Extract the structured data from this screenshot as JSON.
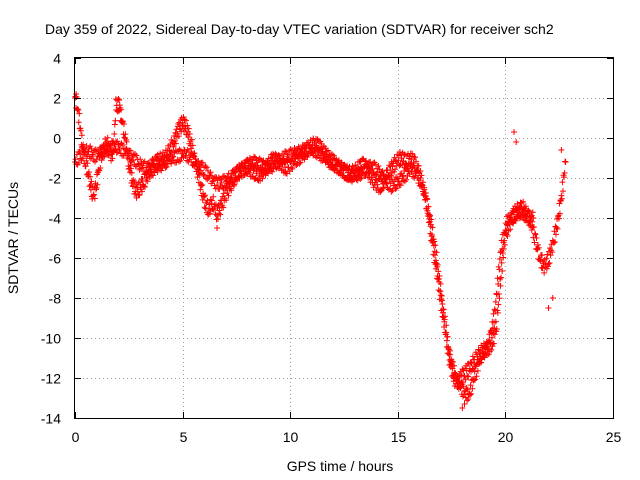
{
  "chart_data": {
    "type": "scatter",
    "title": "Day 359 of 2022, Sidereal Day-to-day VTEC variation (SDTVAR) for receiver sch2",
    "xlabel": "GPS time / hours",
    "ylabel": "SDTVAR / TECUs",
    "xlim": [
      0,
      25
    ],
    "ylim": [
      -14,
      4
    ],
    "xticks": [
      "0",
      "5",
      "10",
      "15",
      "20",
      "25"
    ],
    "yticks": [
      "4",
      "2",
      "0",
      "-2",
      "-4",
      "-6",
      "-8",
      "-10",
      "-12",
      "-14"
    ],
    "grid": true,
    "marker": "+",
    "series": [
      {
        "name": "sch2",
        "color": "#ff0000",
        "x": [
          0.0,
          0.1,
          0.2,
          0.3,
          0.4,
          0.5,
          0.6,
          0.7,
          0.8,
          0.9,
          1.0,
          1.1,
          1.2,
          1.3,
          1.4,
          1.5,
          1.6,
          1.7,
          1.8,
          1.9,
          2.0,
          2.1,
          2.2,
          2.3,
          2.4,
          2.5,
          2.6,
          2.7,
          2.8,
          2.9,
          3.0,
          3.2,
          3.4,
          3.6,
          3.8,
          4.0,
          4.2,
          4.4,
          4.6,
          4.8,
          5.0,
          5.2,
          5.4,
          5.6,
          5.8,
          6.0,
          6.2,
          6.4,
          6.6,
          6.8,
          7.0,
          7.2,
          7.4,
          7.6,
          7.8,
          8.0,
          8.2,
          8.4,
          8.6,
          8.8,
          9.0,
          9.2,
          9.4,
          9.6,
          9.8,
          10.0,
          10.2,
          10.4,
          10.6,
          10.8,
          11.0,
          11.2,
          11.4,
          11.6,
          11.8,
          12.0,
          12.2,
          12.4,
          12.6,
          12.8,
          13.0,
          13.2,
          13.4,
          13.6,
          13.8,
          14.0,
          14.2,
          14.4,
          14.6,
          14.8,
          15.0,
          15.2,
          15.4,
          15.6,
          15.8,
          16.0,
          16.2,
          16.4,
          16.6,
          16.8,
          17.0,
          17.2,
          17.4,
          17.6,
          17.8,
          18.0,
          18.2,
          18.4,
          18.6,
          18.8,
          19.0,
          19.2,
          19.4,
          19.6,
          19.8,
          20.0,
          20.2,
          20.4,
          20.6,
          20.8,
          21.0,
          21.2,
          21.4,
          21.6,
          21.8,
          22.0,
          22.2,
          22.4,
          22.6,
          22.8
        ],
        "y": [
          2.0,
          1.6,
          0.9,
          0.0,
          -0.8,
          -1.3,
          -1.7,
          -2.2,
          -2.7,
          -2.8,
          -2.3,
          -1.6,
          -1.0,
          -0.6,
          -0.4,
          -0.3,
          -0.5,
          -0.9,
          -0.4,
          1.6,
          1.7,
          1.3,
          0.8,
          0.2,
          -0.5,
          -1.2,
          -1.8,
          -2.3,
          -2.6,
          -2.7,
          -2.5,
          -2.2,
          -1.8,
          -1.4,
          -1.2,
          -1.1,
          -1.0,
          -0.6,
          -0.2,
          0.4,
          0.8,
          0.5,
          -0.3,
          -1.2,
          -2.2,
          -3.1,
          -3.6,
          -3.2,
          -3.8,
          -3.4,
          -2.8,
          -2.4,
          -2.0,
          -1.7,
          -1.6,
          -1.5,
          -1.6,
          -1.8,
          -1.8,
          -1.6,
          -1.3,
          -1.1,
          -1.1,
          -1.3,
          -1.5,
          -1.3,
          -1.1,
          -1.0,
          -0.8,
          -0.6,
          -0.4,
          -0.3,
          -0.5,
          -0.8,
          -1.0,
          -1.2,
          -1.4,
          -1.6,
          -1.7,
          -1.8,
          -1.7,
          -1.5,
          -1.3,
          -1.6,
          -2.0,
          -2.3,
          -2.4,
          -2.1,
          -1.7,
          -1.4,
          -1.1,
          -1.0,
          -1.2,
          -1.0,
          -1.3,
          -1.8,
          -2.5,
          -3.6,
          -5.2,
          -6.6,
          -8.1,
          -9.6,
          -11.0,
          -12.0,
          -12.2,
          -11.9,
          -11.7,
          -11.4,
          -11.1,
          -10.8,
          -10.6,
          -10.5,
          -10.3,
          -9.2,
          -6.8,
          -4.8,
          -4.3,
          -3.8,
          -3.6,
          -3.5,
          -3.8,
          -4.3,
          -5.1,
          -6.0,
          -6.4,
          -6.1,
          -5.3,
          -4.4,
          -3.0,
          -1.2
        ]
      }
    ],
    "scatter_band": {
      "x": [
        0.0,
        0.3,
        0.6,
        0.9,
        1.2,
        1.5,
        1.8,
        2.1,
        2.4,
        2.7,
        3.0,
        3.3,
        3.6,
        3.9,
        4.2,
        4.5,
        4.8,
        5.1,
        5.4,
        5.7,
        6.0,
        6.3,
        6.6,
        6.9,
        7.2,
        7.5,
        7.8,
        8.1,
        8.4,
        8.7,
        9.0,
        9.3,
        9.6,
        9.9,
        10.2,
        10.5,
        10.8,
        11.1,
        11.4,
        11.7,
        12.0,
        12.3,
        12.6,
        12.9,
        13.2,
        13.5,
        13.8,
        14.1,
        14.4,
        14.7,
        15.0,
        15.3,
        15.6,
        15.9,
        16.2,
        16.5,
        16.8,
        17.1,
        17.4,
        17.7,
        18.0,
        18.3,
        18.6,
        18.9,
        19.2,
        19.5,
        19.8,
        20.1,
        20.4,
        20.7,
        21.0,
        21.3
      ],
      "y": [
        -1.2,
        -0.8,
        -0.6,
        -0.9,
        -0.7,
        -0.6,
        -0.4,
        -0.5,
        -0.8,
        -1.0,
        -1.3,
        -1.5,
        -1.6,
        -1.4,
        -1.2,
        -1.0,
        -0.9,
        -0.8,
        -1.0,
        -1.3,
        -1.6,
        -2.0,
        -2.3,
        -2.2,
        -2.0,
        -1.8,
        -1.5,
        -1.3,
        -1.2,
        -1.4,
        -1.5,
        -1.3,
        -1.0,
        -0.9,
        -0.8,
        -0.7,
        -0.5,
        -0.6,
        -0.8,
        -1.1,
        -1.3,
        -1.5,
        -1.8,
        -1.9,
        -1.8,
        -1.6,
        -1.4,
        -1.7,
        -2.1,
        -2.4,
        -2.2,
        -1.9,
        -1.6,
        -1.8,
        -2.6,
        -4.0,
        -6.0,
        -8.5,
        -10.8,
        -12.0,
        -12.6,
        -12.9,
        -11.8,
        -10.9,
        -10.4,
        -8.8,
        -5.5,
        -4.1,
        -3.9,
        -3.7,
        -3.9,
        -4.0
      ]
    },
    "outliers": {
      "x": [
        0.05,
        2.05,
        6.6,
        18.0,
        18.1,
        20.4,
        20.5,
        22.0,
        22.2,
        22.6
      ],
      "y": [
        2.2,
        1.9,
        -4.5,
        -13.5,
        -13.3,
        0.3,
        -0.2,
        -8.5,
        -8.0,
        -0.6
      ]
    }
  }
}
